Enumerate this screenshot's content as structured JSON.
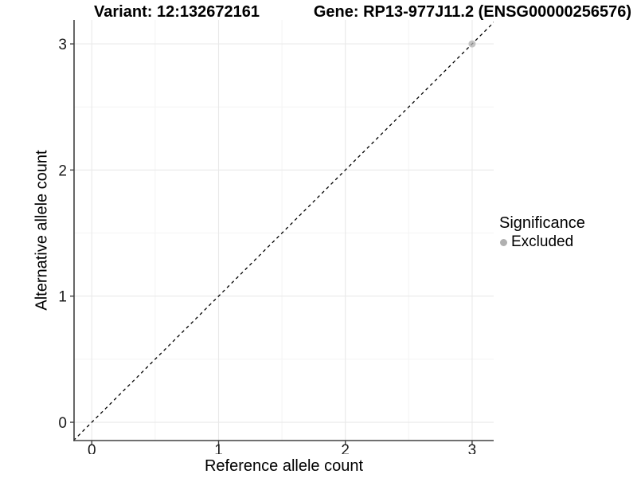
{
  "chart_data": {
    "type": "scatter",
    "title_left": "Variant: 12:132672161",
    "title_right": "Gene: RP13-977J11.2 (ENSG00000256576)",
    "xlabel": "Reference allele count",
    "ylabel": "Alternative allele count",
    "xlim": [
      -0.14,
      3.17
    ],
    "ylim": [
      -0.145,
      3.19
    ],
    "x_ticks": [
      0,
      1,
      2,
      3
    ],
    "y_ticks": [
      0,
      1,
      2,
      3
    ],
    "x_minor_ticks": [
      0.5,
      1.5,
      2.5
    ],
    "y_minor_ticks": [
      0.5,
      1.5,
      2.5
    ],
    "grid": "on",
    "points": [
      {
        "x": 3,
        "y": 3,
        "series": "Excluded"
      }
    ],
    "reference_line": {
      "kind": "identity",
      "slope": 1,
      "intercept": 0,
      "style": "dashed"
    },
    "legend": {
      "position": "right",
      "title": "Significance",
      "items": [
        {
          "label": "Excluded",
          "color": "#b0b0b0"
        }
      ]
    },
    "colors": {
      "point": "#b0b0b0",
      "axis_line": "#404040",
      "tick_label": "#1a1a1a",
      "grid_major": "#e9e9e9",
      "grid_minor": "#f4f4f4",
      "reference_line": "#000000",
      "background": "#ffffff"
    }
  }
}
